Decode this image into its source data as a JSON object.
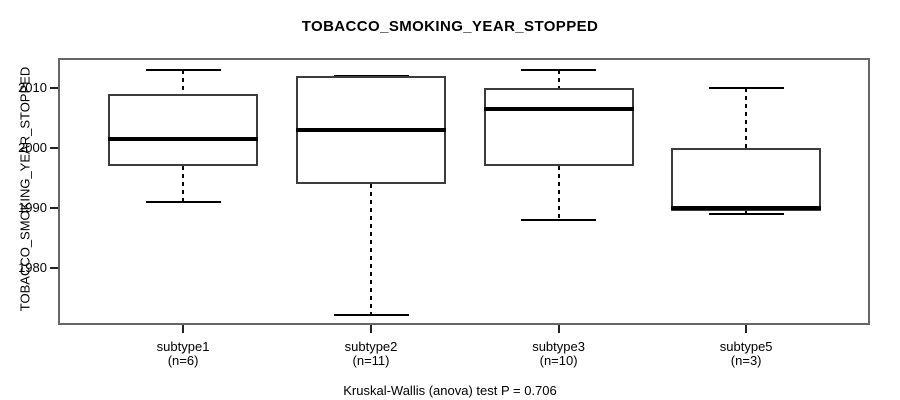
{
  "title": "TOBACCO_SMOKING_YEAR_STOPPED",
  "footnote": "Kruskal-Wallis (anova) test P = 0.706",
  "chart_data": {
    "type": "boxplot",
    "title": "TOBACCO_SMOKING_YEAR_STOPPED",
    "ylabel": "TOBACCO_SMOKING_YEAR_STOPPED",
    "xlabel": "",
    "ylim": [
      1970.4,
      2015.0
    ],
    "yticks": [
      1980,
      1990,
      2000,
      2010
    ],
    "grid": false,
    "legend": "none",
    "annotation": "Kruskal-Wallis (anova) test P = 0.706",
    "groups": [
      {
        "label": "subtype1",
        "sublabel": "(n=6)",
        "n": 6,
        "whisker_low": 1991,
        "q1": 1997,
        "median": 2001.5,
        "q3": 2009,
        "whisker_high": 2013
      },
      {
        "label": "subtype2",
        "sublabel": "(n=11)",
        "n": 11,
        "whisker_low": 1972,
        "q1": 1994,
        "median": 2003,
        "q3": 2012,
        "whisker_high": 2012
      },
      {
        "label": "subtype3",
        "sublabel": "(n=10)",
        "n": 10,
        "whisker_low": 1988,
        "q1": 1997,
        "median": 2006.5,
        "q3": 2010,
        "whisker_high": 2013
      },
      {
        "label": "subtype5",
        "sublabel": "(n=3)",
        "n": 3,
        "whisker_low": 1989,
        "q1": 1989.5,
        "median": 1990,
        "q3": 2000,
        "whisker_high": 2010
      }
    ],
    "colors": {
      "background": "#ffffff",
      "frame": "#666666",
      "box_border": "#3c3c3c",
      "median": "#000000",
      "whisker": "#000000",
      "text": "#000000"
    }
  }
}
